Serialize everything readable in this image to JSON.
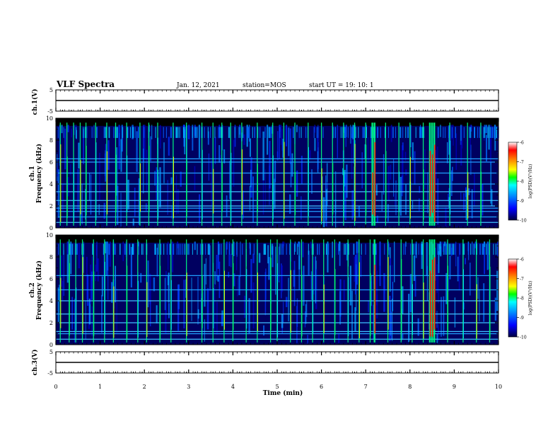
{
  "header": {
    "title": "VLF Spectra",
    "date": "Jan. 12, 2021",
    "station": "station=MOS",
    "start": "start  UT =   19: 10: 1"
  },
  "chart_data": [
    {
      "type": "line",
      "panel": "ch1-waveform",
      "ylabel": "ch.1(V)",
      "ylim": [
        -5,
        5
      ],
      "yticks": [
        "5",
        "-5"
      ],
      "x": [
        0,
        10
      ],
      "y": [
        0,
        0
      ]
    },
    {
      "type": "heatmap",
      "panel": "ch1-spectrogram",
      "ylabel": "ch.1\nFrequency (kHz)",
      "ylim": [
        0,
        10
      ],
      "yticks": [
        "0",
        "2",
        "4",
        "6",
        "8",
        "10"
      ],
      "colorbar": {
        "label": "log(PSD)(V²/Hz)",
        "range": [
          -10,
          -6
        ],
        "ticks": [
          "-6",
          "-7",
          "-8",
          "-9",
          "-10"
        ]
      },
      "horizontal_lines_khz": [
        0.5,
        1.0,
        1.5,
        1.8,
        2.0,
        2.5,
        3.3,
        4.0,
        5.0,
        6.0,
        6.3
      ],
      "spherics_time_min": [
        0.1,
        0.25,
        0.4,
        0.55,
        0.68,
        0.9,
        1.15,
        1.35,
        1.6,
        1.9,
        2.1,
        2.3,
        2.65,
        2.95,
        3.3,
        3.55,
        3.75,
        3.95,
        4.2,
        4.55,
        4.9,
        5.15,
        5.4,
        5.7,
        6.0,
        6.25,
        6.5,
        6.75,
        7.0,
        7.15,
        7.2,
        7.45,
        7.75,
        8.0,
        8.3,
        8.45,
        8.5,
        8.55,
        8.9,
        9.3,
        9.6
      ]
    },
    {
      "type": "heatmap",
      "panel": "ch2-spectrogram",
      "ylabel": "ch.2\nFrequency (kHz)",
      "ylim": [
        0,
        10
      ],
      "yticks": [
        "0",
        "2",
        "4",
        "6",
        "8",
        "10"
      ],
      "colorbar": {
        "label": "log(PSD)(V²/Hz)",
        "range": [
          -10,
          -6
        ],
        "ticks": [
          "-6",
          "-7",
          "-8",
          "-9",
          "-10"
        ]
      },
      "horizontal_lines_khz": [
        0.5,
        1.0,
        1.2,
        2.0,
        2.8,
        4.0,
        5.0,
        6.3
      ],
      "spherics_time_min": [
        0.1,
        0.3,
        0.45,
        0.6,
        0.85,
        1.1,
        1.3,
        1.6,
        1.85,
        2.05,
        2.35,
        2.6,
        2.95,
        3.3,
        3.55,
        3.8,
        4.0,
        4.3,
        4.55,
        4.85,
        5.0,
        5.3,
        5.55,
        5.8,
        6.05,
        6.3,
        6.6,
        6.85,
        7.1,
        7.2,
        7.5,
        7.8,
        8.05,
        8.3,
        8.45,
        8.5,
        8.55,
        8.85,
        9.2,
        9.5,
        9.8
      ]
    },
    {
      "type": "line",
      "panel": "ch3-waveform",
      "ylabel": "ch.3(V)",
      "ylim": [
        -5,
        5
      ],
      "yticks": [
        "5",
        "-5"
      ],
      "x": [
        0,
        10
      ],
      "y": [
        0,
        0
      ]
    }
  ],
  "xaxis": {
    "label": "Time  (min)",
    "range": [
      0,
      10
    ],
    "ticks": [
      "0",
      "1",
      "2",
      "3",
      "4",
      "5",
      "6",
      "7",
      "8",
      "9",
      "10"
    ]
  },
  "colormap": [
    "#000000",
    "#000080",
    "#0000ff",
    "#0080ff",
    "#00e0ff",
    "#00ff80",
    "#80ff00",
    "#ffff00",
    "#ff8000",
    "#ff0000",
    "#ffe6e6"
  ]
}
